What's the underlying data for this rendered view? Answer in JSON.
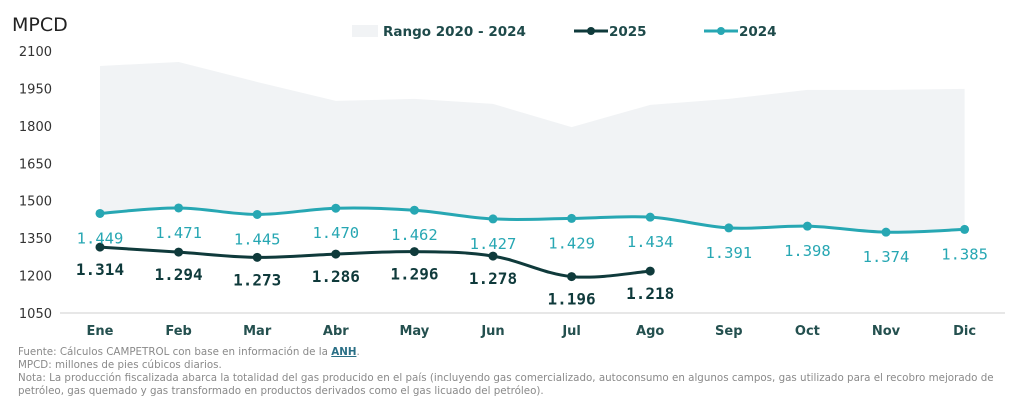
{
  "chart_data": {
    "type": "line",
    "title": "",
    "ylabel": "MPCD",
    "xlabel": "",
    "ylim": [
      1050,
      2100
    ],
    "yticks": [
      1050,
      1200,
      1350,
      1500,
      1650,
      1800,
      1950,
      2100
    ],
    "grid": false,
    "legend_position": "top-center",
    "categories": [
      "Ene",
      "Feb",
      "Mar",
      "Abr",
      "May",
      "Jun",
      "Jul",
      "Ago",
      "Sep",
      "Oct",
      "Nov",
      "Dic"
    ],
    "range": {
      "name": "Rango 2020 - 2024",
      "color": "#f1f3f5",
      "upper": [
        2040,
        2056,
        1976,
        1900,
        1908,
        1888,
        1795,
        1884,
        1908,
        1944,
        1944,
        1948
      ],
      "lower": [
        1449,
        1471,
        1445,
        1470,
        1462,
        1427,
        1429,
        1434,
        1391,
        1398,
        1374,
        1385
      ]
    },
    "series": [
      {
        "name": "2025",
        "color": "#0f3a3b",
        "values": [
          1314,
          1294,
          1273,
          1286,
          1296,
          1278,
          1196,
          1218,
          null,
          null,
          null,
          null
        ],
        "labels": [
          "1.314",
          "1.294",
          "1.273",
          "1.286",
          "1.296",
          "1.278",
          "1.196",
          "1.218"
        ]
      },
      {
        "name": "2024",
        "color": "#27a7b3",
        "values": [
          1449,
          1471,
          1445,
          1470,
          1462,
          1427,
          1429,
          1434,
          1391,
          1398,
          1374,
          1385
        ],
        "labels": [
          "1.449",
          "1.471",
          "1.445",
          "1.470",
          "1.462",
          "1.427",
          "1.429",
          "1.434",
          "1.391",
          "1.398",
          "1.374",
          "1.385"
        ]
      }
    ]
  },
  "footnotes": {
    "source_prefix": "Fuente: Cálculos CAMPETROL con base en información de la ",
    "source_link": "ANH",
    "source_suffix": ".",
    "unit_note": "MPCD: millones de pies cúbicos diarios.",
    "note_line1": "Nota: La producción fiscalizada abarca la totalidad del gas producido en el país (incluyendo gas comercializado, autoconsumo en algunos campos, gas utilizado para el recobro mejorado de",
    "note_line2": "petróleo, gas quemado y gas transformado en productos derivados como el gas licuado del petróleo)."
  }
}
